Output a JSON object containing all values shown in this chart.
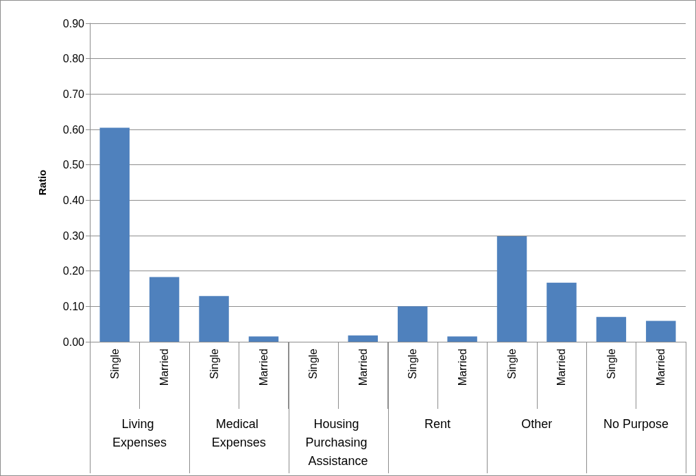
{
  "chart_data": {
    "type": "bar",
    "ylabel": "Ratio",
    "categories": [
      "Single",
      "Married",
      "Single",
      "Married",
      "Single",
      "Married",
      "Single",
      "Married",
      "Single",
      "Married",
      "Single",
      "Married"
    ],
    "values": [
      0.605,
      0.183,
      0.129,
      0.015,
      0,
      0.018,
      0.1,
      0.015,
      0.298,
      0.167,
      0.07,
      0.059
    ],
    "color": "#4f81bd",
    "annotations": [
      "Living Expenses",
      "Medical Expenses",
      "Housing Purchasing Assistance",
      "Rent",
      "Other",
      "No Purpose"
    ],
    "ylim": [
      0,
      0.9
    ],
    "yticks": [
      {
        "value": 0,
        "label": "0.00"
      },
      {
        "value": 0.1,
        "label": "0.10"
      },
      {
        "value": 0.2,
        "label": "0.20"
      },
      {
        "value": 0.3,
        "label": "0.30"
      },
      {
        "value": 0.4,
        "label": "0.40"
      },
      {
        "value": 0.5,
        "label": "0.50"
      },
      {
        "value": 0.6,
        "label": "0.60"
      },
      {
        "value": 0.7,
        "label": "0.70"
      },
      {
        "value": 0.8,
        "label": "0.80"
      },
      {
        "value": 0.9,
        "label": "0.90"
      }
    ],
    "grid": "y"
  }
}
